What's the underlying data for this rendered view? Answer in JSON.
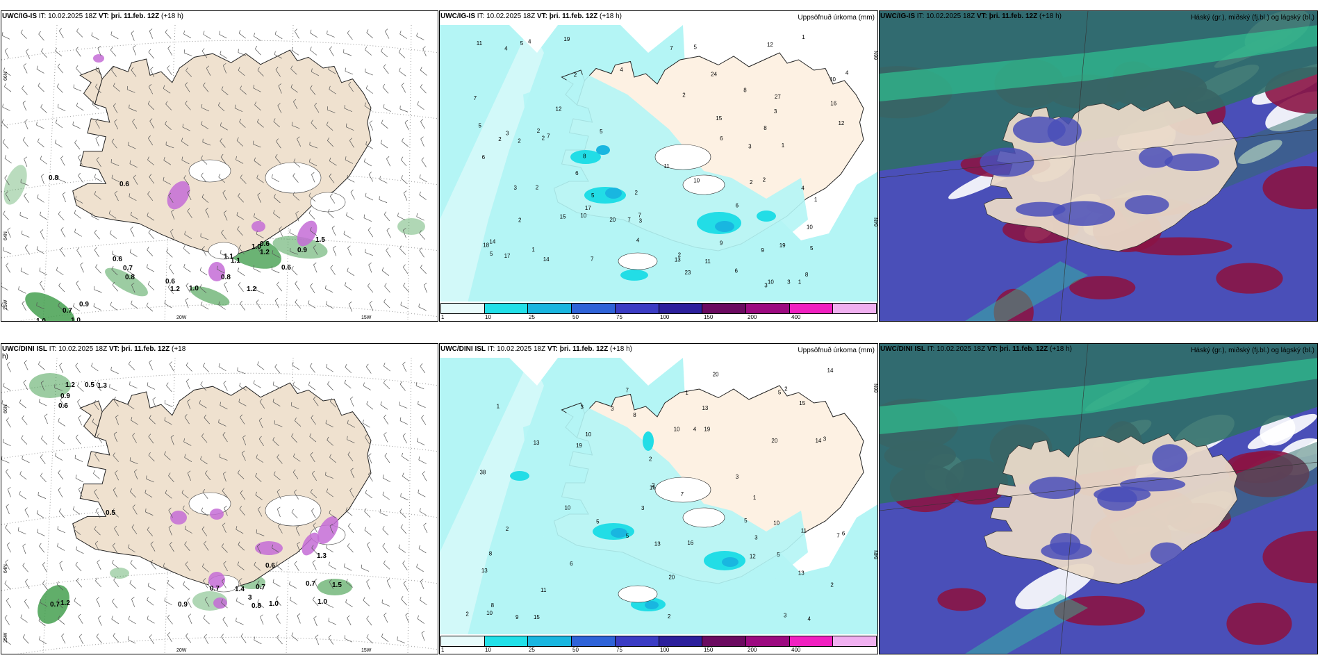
{
  "panels": {
    "top_wind": {
      "model": "UWC/IG-IS",
      "it_label": "IT:",
      "it_time": "10.02.2025 18Z",
      "vt_label": "VT:",
      "vt_time": "þri. 11.feb. 12Z",
      "lead": "(+18 h)",
      "lat_labels": [
        "66N",
        "64N",
        "25W"
      ],
      "lon_labels": [
        "20W",
        "15W"
      ],
      "values": [
        "0.8",
        "0.6",
        "0.6",
        "1.1",
        "1.2",
        "0.6",
        "0.7",
        "0.8",
        "0.6",
        "1.2",
        "1.0",
        "0.8",
        "1.2",
        "0.9",
        "0.7",
        "1.0",
        "1.0",
        "1.1",
        "0.9",
        "1.0",
        "1.5",
        "0.6"
      ]
    },
    "top_precip": {
      "model": "UWC/IG-IS",
      "it_label": "IT:",
      "it_time": "10.02.2025 18Z",
      "vt_label": "VT:",
      "vt_time": "þri. 11.feb. 12Z",
      "lead": "(+18 h)",
      "right_title": "Uppsöfnuð úrkoma (mm)",
      "lat_labels": [
        "66N",
        "64N"
      ],
      "values": [
        "2",
        "2",
        "5",
        "2",
        "1",
        "2",
        "7",
        "6",
        "10",
        "3",
        "1",
        "7",
        "11",
        "10",
        "8",
        "9",
        "11",
        "12",
        "10",
        "5",
        "3",
        "7",
        "11",
        "15",
        "19",
        "6",
        "13",
        "14",
        "27",
        "18",
        "17",
        "20",
        "17",
        "10",
        "8",
        "5",
        "3",
        "4",
        "2",
        "7",
        "6",
        "8",
        "4",
        "6",
        "3",
        "5",
        "7",
        "12",
        "19",
        "24",
        "23",
        "8",
        "10",
        "12",
        "16",
        "15",
        "14",
        "4",
        "2",
        "1",
        "5",
        "4",
        "7",
        "2",
        "9",
        "2",
        "1",
        "2",
        "6",
        "5",
        "3",
        "2",
        "4",
        "3",
        "5",
        "2",
        "1",
        "2",
        "4",
        "3"
      ]
    },
    "top_cloud": {
      "model": "UWC/IG-IS",
      "it_label": "IT:",
      "it_time": "10.02.2025 18Z",
      "vt_label": "VT:",
      "vt_time": "þri. 11.feb. 12Z",
      "lead": "(+18 h)",
      "right_title": "Háský (gr.), miðský (fj.bl.) og lágský (bl.)"
    },
    "bot_wind": {
      "model": "UWC/DINI ISL",
      "it_label": "IT:",
      "it_time": "10.02.2025 18Z",
      "vt_label": "VT:",
      "vt_time": "þri. 11.feb. 12Z",
      "lead": "(+18",
      "lead_wrap": "h)",
      "lat_labels": [
        "66N",
        "64N",
        "25W"
      ],
      "lon_labels": [
        "20W",
        "15W"
      ],
      "values": [
        "1.2",
        "0.5",
        "1.3",
        "0.9",
        "0.6",
        "0.5",
        "0.6",
        "1.3",
        "1.4",
        "0.7",
        "3",
        "0.8",
        "1.0",
        "0.7",
        "0.9",
        "0.7",
        "1.5",
        "1.0",
        "0.7",
        "1.2"
      ]
    },
    "bot_precip": {
      "model": "UWC/DINI ISL",
      "it_label": "IT:",
      "it_time": "10.02.2025 18Z",
      "vt_label": "VT:",
      "vt_time": "þri. 11.feb. 12Z",
      "lead": "(+18 h)",
      "right_title": "Uppsöfnuð úrkoma (mm)",
      "lat_labels": [
        "66N",
        "64N"
      ],
      "values": [
        "2",
        "4",
        "3",
        "2",
        "1",
        "3",
        "5",
        "2",
        "3",
        "10",
        "8",
        "13",
        "13",
        "14",
        "13",
        "12",
        "10",
        "11",
        "7",
        "14",
        "20",
        "19",
        "38",
        "15",
        "13",
        "10",
        "13",
        "16",
        "19",
        "20",
        "10",
        "8",
        "7",
        "6",
        "5",
        "3",
        "2",
        "4",
        "6",
        "3",
        "2",
        "1",
        "5",
        "3",
        "2",
        "7",
        "5",
        "8",
        "9",
        "15",
        "20",
        "16",
        "10",
        "11",
        "3",
        "2",
        "1",
        "5"
      ]
    },
    "bot_cloud": {
      "model": "UWC/DINI ISL",
      "it_label": "IT:",
      "it_time": "10.02.2025 18Z",
      "vt_label": "VT:",
      "vt_time": "þri. 11.feb. 12Z",
      "lead": "(+18 h)",
      "right_title": "Háský (gr.), miðský (fj.bl.) og lágský (bl.)"
    }
  },
  "colorbar": {
    "ticks": [
      "1",
      "10",
      "25",
      "50",
      "75",
      "100",
      "150",
      "200",
      "400"
    ],
    "colors": [
      "#e8fbfb",
      "#22e0e8",
      "#19b6e0",
      "#2f63d8",
      "#3b3cc4",
      "#2c1f9c",
      "#6b0a60",
      "#9c0a80",
      "#f020c0",
      "#f0b0f0"
    ]
  }
}
